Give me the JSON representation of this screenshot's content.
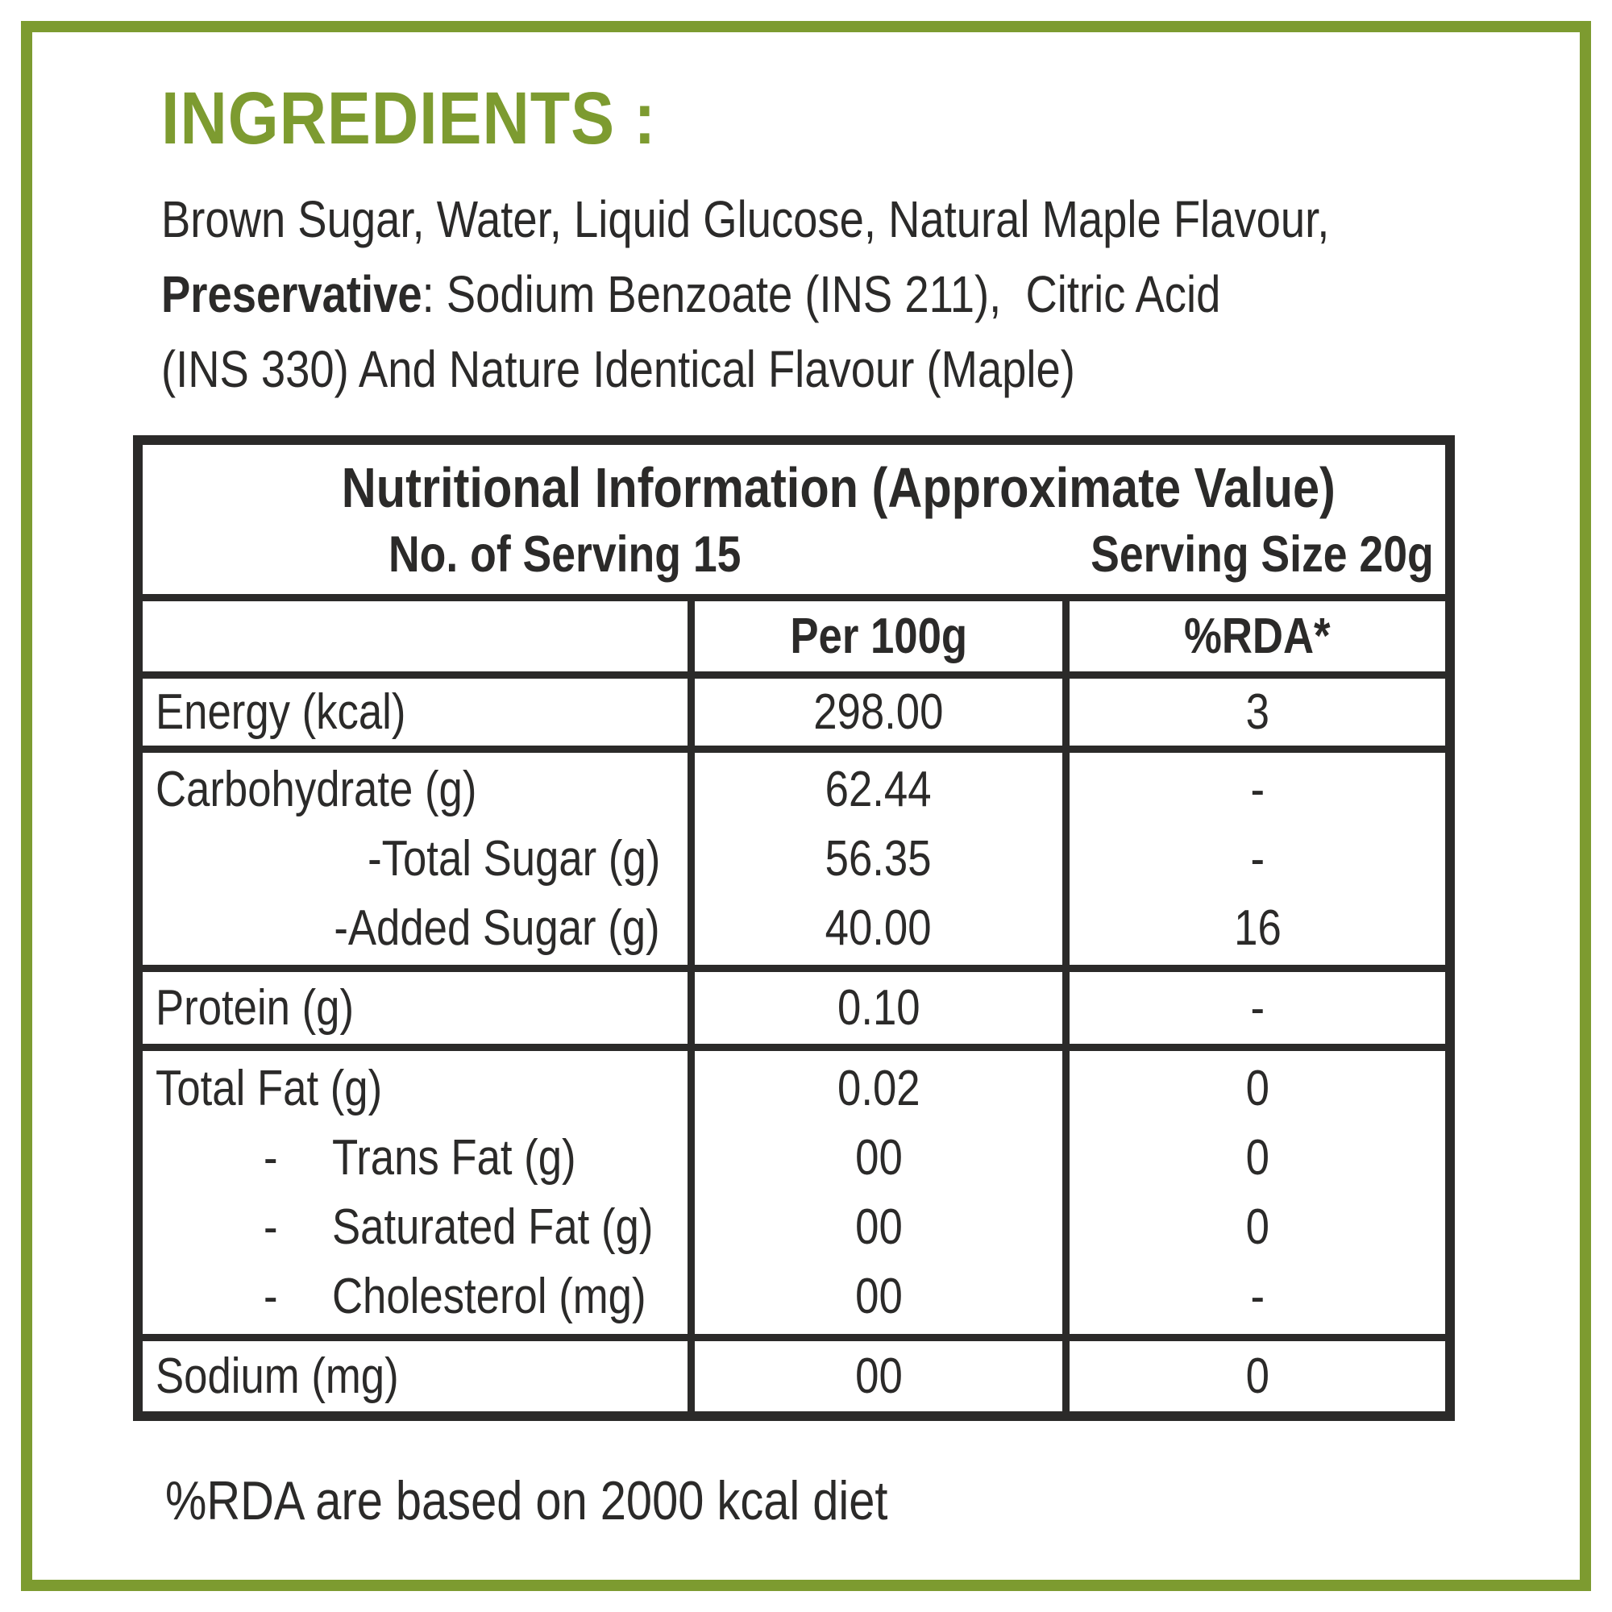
{
  "colors": {
    "accent_green": "#7d9b30",
    "ink": "#2b2a29"
  },
  "ingredients": {
    "heading": "INGREDIENTS :",
    "line1": "Brown Sugar, Water, Liquid Glucose, Natural Maple Flavour,",
    "line2_lead": "Preservative",
    "line2_rest": ": Sodium Benzoate (INS 211),  Citric Acid",
    "line3": "(INS 330) And Nature Identical Flavour (Maple)"
  },
  "nutrition_table": {
    "title": "Nutritional Information (Approximate Value)",
    "servings": "No. of Serving 15",
    "serving_size": "Serving Size 20g",
    "columns": {
      "per100g": "Per 100g",
      "rda": "%RDA*"
    },
    "energy": {
      "label": "Energy (kcal)",
      "per100g": "298.00",
      "rda": "3"
    },
    "carbohydrate": {
      "main": {
        "label": "Carbohydrate (g)",
        "per100g": "62.44",
        "rda": "-"
      },
      "total_sugar": {
        "label": "-Total Sugar (g)",
        "per100g": "56.35",
        "rda": "-"
      },
      "added_sugar": {
        "label": "-Added Sugar (g)",
        "per100g": "40.00",
        "rda": "16"
      }
    },
    "protein": {
      "label": "Protein (g)",
      "per100g": "0.10",
      "rda": "-"
    },
    "fat": {
      "main": {
        "dash": "",
        "label": "Total Fat (g)",
        "per100g": "0.02",
        "rda": "0"
      },
      "trans": {
        "dash": "-",
        "label": "Trans Fat (g)",
        "per100g": "00",
        "rda": "0"
      },
      "saturated": {
        "dash": "-",
        "label": "Saturated Fat (g)",
        "per100g": "00",
        "rda": "0"
      },
      "cholesterol": {
        "dash": "-",
        "label": "Cholesterol (mg)",
        "per100g": "00",
        "rda": "-"
      }
    },
    "sodium": {
      "label": "Sodium (mg)",
      "per100g": "00",
      "rda": "0"
    }
  },
  "footer_note": "%RDA are based on 2000 kcal diet"
}
